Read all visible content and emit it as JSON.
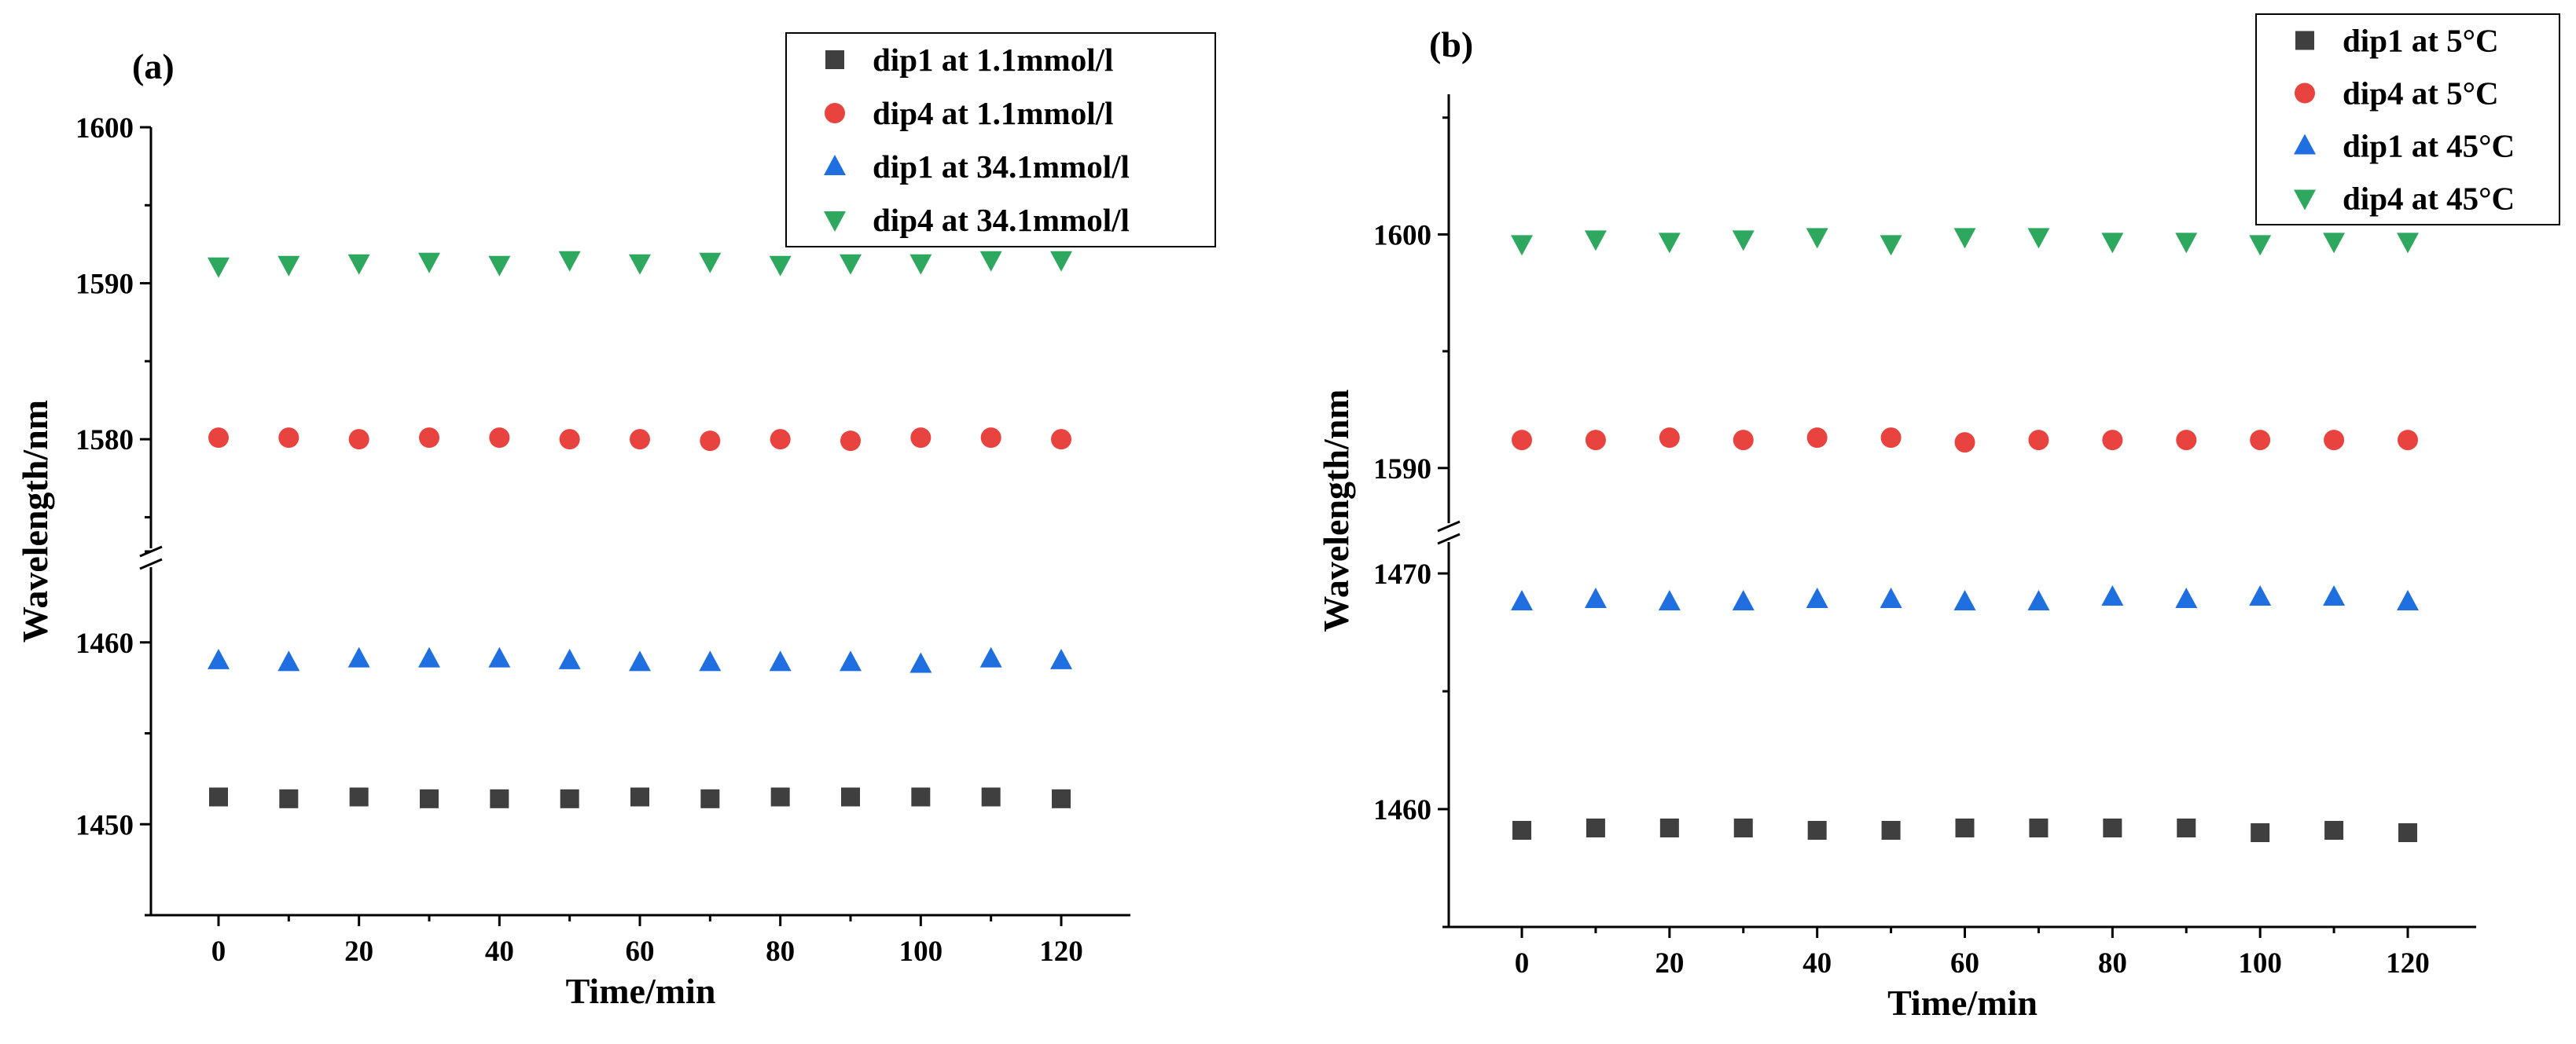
{
  "chart_data": [
    {
      "type": "scatter",
      "panel_label": "(a)",
      "xlabel": "Time/min",
      "ylabel": "Wavelength/nm",
      "x": [
        0,
        10,
        20,
        30,
        40,
        50,
        60,
        70,
        80,
        90,
        100,
        110,
        120
      ],
      "x_ticks": [
        0,
        20,
        40,
        60,
        80,
        100,
        120
      ],
      "xlim": [
        -10,
        130
      ],
      "axis_break": true,
      "y_segments": [
        {
          "ylim": [
            1445,
            1465
          ],
          "ticks": [
            1450,
            1460
          ]
        },
        {
          "ylim": [
            1572,
            1600
          ],
          "ticks": [
            1580,
            1590,
            1600
          ]
        }
      ],
      "legend_position": "top-right",
      "series": [
        {
          "name": "dip1 at 1.1mmol/l",
          "marker": "square",
          "color": "#3f3f3f",
          "values": [
            1451.5,
            1451.4,
            1451.5,
            1451.4,
            1451.4,
            1451.4,
            1451.5,
            1451.4,
            1451.5,
            1451.5,
            1451.5,
            1451.5,
            1451.4
          ]
        },
        {
          "name": "dip4 at 1.1mmol/l",
          "marker": "circle",
          "color": "#e8433f",
          "values": [
            1580.1,
            1580.1,
            1580.0,
            1580.1,
            1580.1,
            1580.0,
            1580.0,
            1579.9,
            1580.0,
            1579.9,
            1580.1,
            1580.1,
            1580.0
          ]
        },
        {
          "name": "dip1 at 34.1mmol/l",
          "marker": "triangle-up",
          "color": "#1f6fe0",
          "values": [
            1459.0,
            1458.9,
            1459.1,
            1459.1,
            1459.1,
            1459.0,
            1458.9,
            1458.9,
            1458.9,
            1458.9,
            1458.8,
            1459.1,
            1459.0
          ]
        },
        {
          "name": "dip4 at 34.1mmol/l",
          "marker": "triangle-down",
          "color": "#2fa85f",
          "values": [
            1591.1,
            1591.2,
            1591.3,
            1591.4,
            1591.2,
            1591.5,
            1591.3,
            1591.4,
            1591.2,
            1591.3,
            1591.3,
            1591.5,
            1591.5
          ]
        }
      ]
    },
    {
      "type": "scatter",
      "panel_label": "(b)",
      "xlabel": "Time/min",
      "ylabel": "Wavelength/nm",
      "x": [
        0,
        10,
        20,
        30,
        40,
        50,
        60,
        70,
        80,
        90,
        100,
        110,
        120
      ],
      "x_ticks": [
        0,
        20,
        40,
        60,
        80,
        100,
        120
      ],
      "xlim": [
        -10,
        130
      ],
      "axis_break": true,
      "y_segments": [
        {
          "ylim": [
            1455,
            1472
          ],
          "ticks": [
            1460,
            1470
          ]
        },
        {
          "ylim": [
            1587,
            1606
          ],
          "ticks": [
            1590,
            1600
          ]
        }
      ],
      "legend_position": "top-right",
      "series": [
        {
          "name": "dip1 at 5°C",
          "marker": "square",
          "color": "#3f3f3f",
          "values": [
            1459.1,
            1459.2,
            1459.2,
            1459.2,
            1459.1,
            1459.1,
            1459.2,
            1459.2,
            1459.2,
            1459.2,
            1459.0,
            1459.1,
            1459.0
          ]
        },
        {
          "name": "dip4 at 5°C",
          "marker": "circle",
          "color": "#e8433f",
          "values": [
            1591.2,
            1591.2,
            1591.3,
            1591.2,
            1591.3,
            1591.3,
            1591.1,
            1591.2,
            1591.2,
            1591.2,
            1591.2,
            1591.2,
            1591.2
          ]
        },
        {
          "name": "dip1 at 45°C",
          "marker": "triangle-up",
          "color": "#1f6fe0",
          "values": [
            1468.8,
            1468.9,
            1468.8,
            1468.8,
            1468.9,
            1468.9,
            1468.8,
            1468.8,
            1469.0,
            1468.9,
            1469.0,
            1469.0,
            1468.8
          ]
        },
        {
          "name": "dip4 at 45°C",
          "marker": "triangle-down",
          "color": "#2fa85f",
          "values": [
            1599.6,
            1599.8,
            1599.7,
            1599.8,
            1599.9,
            1599.6,
            1599.9,
            1599.9,
            1599.7,
            1599.7,
            1599.6,
            1599.7,
            1599.7
          ]
        }
      ]
    }
  ]
}
